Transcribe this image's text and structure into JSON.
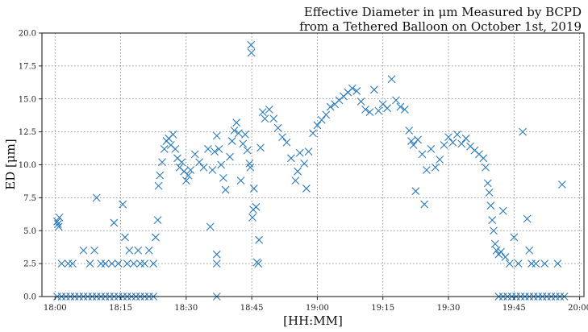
{
  "chart_data": {
    "type": "scatter",
    "title_line1": "Effective Diameter in μm Measured by BCPD",
    "title_line2": "from a Tethered Balloon on October 1st, 2019",
    "xlabel": "[HH:MM]",
    "ylabel": "ED [μm]",
    "xlim": [
      "17:57",
      "20:01"
    ],
    "ylim": [
      0,
      20
    ],
    "grid": true,
    "marker": "x",
    "color": "#2b7bba",
    "x_ticks": [
      "18:00",
      "18:15",
      "18:30",
      "18:45",
      "19:00",
      "19:15",
      "19:30",
      "19:45",
      "20:00"
    ],
    "y_ticks": [
      "0.0",
      "2.5",
      "5.0",
      "7.5",
      "10.0",
      "12.5",
      "15.0",
      "17.5",
      "20.0"
    ],
    "points": [
      [
        "18:00:30",
        5.7
      ],
      [
        "18:00:40",
        5.5
      ],
      [
        "18:01:00",
        6.0
      ],
      [
        "18:00:50",
        5.3
      ],
      [
        "18:01:30",
        2.5
      ],
      [
        "18:03:00",
        2.5
      ],
      [
        "18:04:00",
        2.5
      ],
      [
        "18:06:30",
        3.5
      ],
      [
        "18:08:00",
        2.5
      ],
      [
        "18:09:00",
        3.5
      ],
      [
        "18:09:30",
        7.5
      ],
      [
        "18:10:30",
        2.5
      ],
      [
        "18:11:30",
        2.5
      ],
      [
        "18:13:00",
        2.5
      ],
      [
        "18:13:30",
        5.6
      ],
      [
        "18:14:30",
        2.5
      ],
      [
        "18:15:30",
        7.0
      ],
      [
        "18:16:00",
        4.5
      ],
      [
        "18:16:30",
        2.5
      ],
      [
        "18:17:00",
        3.5
      ],
      [
        "18:18:00",
        2.5
      ],
      [
        "18:19:00",
        3.5
      ],
      [
        "18:19:30",
        2.5
      ],
      [
        "18:20:30",
        2.5
      ],
      [
        "18:21:30",
        3.5
      ],
      [
        "18:22:30",
        2.5
      ],
      [
        "18:23:00",
        4.5
      ],
      [
        "18:23:30",
        5.8
      ],
      [
        "18:23:40",
        8.4
      ],
      [
        "18:24:00",
        9.2
      ],
      [
        "18:24:30",
        10.2
      ],
      [
        "18:25:00",
        11.2
      ],
      [
        "18:25:30",
        11.8
      ],
      [
        "18:26:00",
        12.0
      ],
      [
        "18:26:30",
        11.5
      ],
      [
        "18:27:00",
        12.3
      ],
      [
        "18:27:30",
        11.2
      ],
      [
        "18:28:00",
        10.5
      ],
      [
        "18:28:30",
        9.8
      ],
      [
        "18:29:00",
        10.2
      ],
      [
        "18:29:30",
        9.5
      ],
      [
        "18:30:00",
        8.8
      ],
      [
        "18:30:30",
        9.2
      ],
      [
        "18:31:00",
        9.6
      ],
      [
        "18:32:00",
        10.8
      ],
      [
        "18:33:00",
        10.2
      ],
      [
        "18:34:00",
        9.8
      ],
      [
        "18:35:00",
        11.2
      ],
      [
        "18:35:30",
        5.3
      ],
      [
        "18:36:00",
        9.6
      ],
      [
        "18:36:30",
        11.0
      ],
      [
        "18:37:00",
        12.2
      ],
      [
        "18:37:30",
        11.2
      ],
      [
        "18:38:00",
        10.0
      ],
      [
        "18:37:00",
        3.2
      ],
      [
        "18:37:00",
        2.5
      ],
      [
        "18:38:30",
        9.0
      ],
      [
        "18:39:00",
        8.1
      ],
      [
        "18:40:00",
        10.6
      ],
      [
        "18:40:30",
        11.8
      ],
      [
        "18:41:00",
        12.6
      ],
      [
        "18:41:30",
        13.2
      ],
      [
        "18:42:00",
        12.4
      ],
      [
        "18:42:30",
        8.8
      ],
      [
        "18:43:00",
        11.6
      ],
      [
        "18:43:30",
        12.3
      ],
      [
        "18:44:00",
        11.1
      ],
      [
        "18:44:30",
        10.1
      ],
      [
        "18:44:40",
        9.8
      ],
      [
        "18:44:50",
        19.1
      ],
      [
        "18:44:55",
        18.5
      ],
      [
        "18:45:10",
        6.0
      ],
      [
        "18:45:20",
        6.6
      ],
      [
        "18:45:30",
        8.2
      ],
      [
        "18:46:00",
        6.8
      ],
      [
        "18:46:10",
        2.6
      ],
      [
        "18:46:30",
        2.5
      ],
      [
        "18:46:40",
        4.3
      ],
      [
        "18:47:00",
        11.3
      ],
      [
        "18:47:30",
        14.0
      ],
      [
        "18:48:00",
        13.5
      ],
      [
        "18:49:00",
        14.2
      ],
      [
        "18:50:00",
        13.5
      ],
      [
        "18:51:00",
        12.8
      ],
      [
        "18:52:00",
        12.1
      ],
      [
        "18:53:00",
        11.7
      ],
      [
        "18:54:00",
        10.5
      ],
      [
        "18:55:00",
        8.8
      ],
      [
        "18:55:30",
        9.5
      ],
      [
        "18:56:00",
        10.9
      ],
      [
        "18:57:00",
        10.1
      ],
      [
        "18:57:30",
        8.2
      ],
      [
        "18:58:00",
        11.0
      ],
      [
        "18:59:00",
        12.4
      ],
      [
        "19:00:00",
        13.0
      ],
      [
        "19:01:00",
        13.4
      ],
      [
        "19:02:00",
        13.8
      ],
      [
        "19:03:00",
        14.4
      ],
      [
        "19:04:00",
        14.6
      ],
      [
        "19:05:00",
        14.9
      ],
      [
        "19:06:00",
        15.2
      ],
      [
        "19:07:00",
        15.5
      ],
      [
        "19:08:00",
        15.8
      ],
      [
        "19:09:00",
        15.6
      ],
      [
        "19:10:00",
        14.8
      ],
      [
        "19:11:00",
        14.2
      ],
      [
        "19:12:00",
        14.0
      ],
      [
        "19:13:00",
        15.7
      ],
      [
        "19:14:00",
        14.1
      ],
      [
        "19:15:00",
        14.6
      ],
      [
        "19:16:00",
        14.3
      ],
      [
        "19:17:00",
        16.5
      ],
      [
        "19:18:00",
        14.9
      ],
      [
        "19:19:00",
        14.4
      ],
      [
        "19:20:00",
        14.2
      ],
      [
        "19:21:00",
        12.6
      ],
      [
        "19:21:30",
        11.8
      ],
      [
        "19:22:00",
        11.5
      ],
      [
        "19:22:30",
        8.0
      ],
      [
        "19:23:00",
        11.9
      ],
      [
        "19:24:00",
        10.8
      ],
      [
        "19:24:30",
        7.0
      ],
      [
        "19:25:00",
        9.6
      ],
      [
        "19:26:00",
        11.2
      ],
      [
        "19:27:00",
        9.8
      ],
      [
        "19:28:00",
        10.4
      ],
      [
        "19:29:00",
        11.5
      ],
      [
        "19:30:00",
        12.1
      ],
      [
        "19:31:00",
        11.7
      ],
      [
        "19:32:00",
        12.3
      ],
      [
        "19:33:00",
        11.6
      ],
      [
        "19:34:00",
        12.0
      ],
      [
        "19:35:00",
        11.4
      ],
      [
        "19:36:00",
        11.1
      ],
      [
        "19:37:00",
        10.8
      ],
      [
        "19:38:00",
        10.5
      ],
      [
        "19:38:30",
        9.8
      ],
      [
        "19:39:00",
        8.6
      ],
      [
        "19:39:20",
        7.9
      ],
      [
        "19:39:40",
        6.9
      ],
      [
        "19:40:00",
        5.8
      ],
      [
        "19:40:20",
        5.0
      ],
      [
        "19:40:40",
        4.0
      ],
      [
        "19:41:00",
        3.5
      ],
      [
        "19:41:30",
        3.2
      ],
      [
        "19:42:00",
        3.4
      ],
      [
        "19:42:30",
        6.5
      ],
      [
        "19:43:00",
        3.0
      ],
      [
        "19:44:00",
        2.5
      ],
      [
        "19:45:00",
        4.5
      ],
      [
        "19:46:00",
        2.5
      ],
      [
        "19:47:00",
        12.5
      ],
      [
        "19:48:00",
        5.9
      ],
      [
        "19:48:30",
        3.5
      ],
      [
        "19:49:00",
        2.5
      ],
      [
        "19:50:00",
        2.5
      ],
      [
        "19:52:00",
        2.5
      ],
      [
        "19:55:00",
        2.5
      ],
      [
        "19:56:00",
        8.5
      ],
      [
        "18:00:30",
        0
      ],
      [
        "18:01:30",
        0
      ],
      [
        "18:02:30",
        0
      ],
      [
        "18:03:30",
        0
      ],
      [
        "18:04:30",
        0
      ],
      [
        "18:05:30",
        0
      ],
      [
        "18:06:30",
        0
      ],
      [
        "18:07:30",
        0
      ],
      [
        "18:08:30",
        0
      ],
      [
        "18:09:30",
        0
      ],
      [
        "18:10:30",
        0
      ],
      [
        "18:11:30",
        0
      ],
      [
        "18:12:30",
        0
      ],
      [
        "18:13:30",
        0
      ],
      [
        "18:14:30",
        0
      ],
      [
        "18:15:30",
        0
      ],
      [
        "18:16:30",
        0
      ],
      [
        "18:17:30",
        0
      ],
      [
        "18:18:30",
        0
      ],
      [
        "18:19:30",
        0
      ],
      [
        "18:20:30",
        0
      ],
      [
        "18:21:30",
        0
      ],
      [
        "18:22:30",
        0
      ],
      [
        "18:37:00",
        0
      ],
      [
        "19:41:30",
        0
      ],
      [
        "19:42:30",
        0
      ],
      [
        "19:43:30",
        0
      ],
      [
        "19:44:30",
        0
      ],
      [
        "19:45:30",
        0
      ],
      [
        "19:46:30",
        0
      ],
      [
        "19:47:30",
        0
      ],
      [
        "19:48:30",
        0
      ],
      [
        "19:49:30",
        0
      ],
      [
        "19:50:30",
        0
      ],
      [
        "19:51:30",
        0
      ],
      [
        "19:52:30",
        0
      ],
      [
        "19:53:30",
        0
      ],
      [
        "19:54:30",
        0
      ],
      [
        "19:55:30",
        0
      ],
      [
        "19:56:30",
        0
      ]
    ]
  }
}
